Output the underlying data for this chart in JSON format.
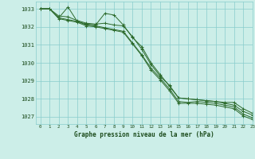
{
  "title": "Graphe pression niveau de la mer (hPa)",
  "background_color": "#cceee8",
  "grid_color": "#88cccc",
  "line_color": "#2d6b2d",
  "xlim": [
    -0.5,
    23
  ],
  "ylim": [
    1026.6,
    1033.4
  ],
  "yticks": [
    1027,
    1028,
    1029,
    1030,
    1031,
    1032,
    1033
  ],
  "xticks": [
    0,
    1,
    2,
    3,
    4,
    5,
    6,
    7,
    8,
    9,
    10,
    11,
    12,
    13,
    14,
    15,
    16,
    17,
    18,
    19,
    20,
    21,
    22,
    23
  ],
  "series": [
    [
      1033.0,
      1033.0,
      1032.5,
      1033.1,
      1032.3,
      1032.15,
      1032.1,
      1032.75,
      1032.65,
      1032.1,
      1031.4,
      1030.9,
      1030.0,
      1029.35,
      1028.7,
      1028.05,
      1028.0,
      1027.95,
      1027.9,
      1027.85,
      1027.8,
      1027.8,
      1027.45,
      1027.2
    ],
    [
      1033.0,
      1033.0,
      1032.6,
      1032.55,
      1032.35,
      1032.2,
      1032.15,
      1032.2,
      1032.1,
      1032.05,
      1031.45,
      1030.75,
      1029.9,
      1029.25,
      1028.75,
      1028.05,
      1028.0,
      1027.95,
      1027.9,
      1027.85,
      1027.75,
      1027.65,
      1027.3,
      1027.1
    ],
    [
      1033.0,
      1033.0,
      1032.5,
      1032.4,
      1032.3,
      1032.1,
      1032.05,
      1031.95,
      1031.85,
      1031.75,
      1031.1,
      1030.45,
      1029.7,
      1029.15,
      1028.55,
      1027.85,
      1027.8,
      1027.85,
      1027.8,
      1027.75,
      1027.65,
      1027.55,
      1027.15,
      1026.95
    ],
    [
      1033.0,
      1033.0,
      1032.45,
      1032.35,
      1032.25,
      1032.05,
      1032.0,
      1031.9,
      1031.8,
      1031.7,
      1031.05,
      1030.4,
      1029.6,
      1029.05,
      1028.45,
      1027.75,
      1027.75,
      1027.75,
      1027.7,
      1027.65,
      1027.55,
      1027.45,
      1027.05,
      1026.85
    ]
  ]
}
